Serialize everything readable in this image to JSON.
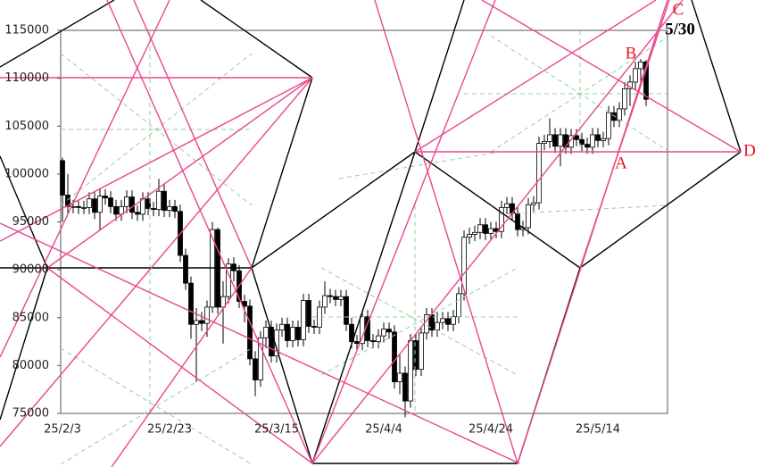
{
  "chart_data": {
    "type": "candlestick",
    "categories": [
      "25/2/3",
      null,
      null,
      null,
      null,
      null,
      null,
      null,
      null,
      null,
      null,
      null,
      null,
      null,
      null,
      null,
      null,
      null,
      null,
      null,
      "25/2/23",
      null,
      null,
      null,
      null,
      null,
      null,
      null,
      null,
      null,
      null,
      null,
      null,
      null,
      null,
      null,
      null,
      null,
      null,
      null,
      "25/3/15",
      null,
      null,
      null,
      null,
      null,
      null,
      null,
      null,
      null,
      null,
      null,
      null,
      null,
      null,
      null,
      null,
      null,
      null,
      null,
      "25/4/4",
      null,
      null,
      null,
      null,
      null,
      null,
      null,
      null,
      null,
      null,
      null,
      null,
      null,
      null,
      null,
      null,
      null,
      null,
      null,
      "25/4/24",
      null,
      null,
      null,
      null,
      null,
      null,
      null,
      null,
      null,
      null,
      null,
      null,
      null,
      null,
      null,
      null,
      null,
      null,
      null,
      "25/5/14",
      null,
      null,
      null,
      null,
      null,
      null,
      null,
      null,
      null
    ],
    "open": [
      101400,
      97800,
      96600,
      96600,
      96500,
      96500,
      97400,
      96000,
      97700,
      97500,
      96600,
      95800,
      96600,
      97600,
      96000,
      95800,
      97400,
      96400,
      96300,
      98200,
      96200,
      96600,
      96100,
      91500,
      88600,
      84300,
      84700,
      84400,
      86100,
      94200,
      86100,
      87200,
      90600,
      89900,
      86700,
      86200,
      80700,
      78500,
      82900,
      84000,
      81000,
      83700,
      84300,
      82600,
      84000,
      82700,
      86800,
      84100,
      84000,
      86100,
      87300,
      87200,
      86900,
      87200,
      84300,
      82500,
      82300,
      85100,
      82600,
      82500,
      83100,
      83800,
      83500,
      78300,
      79200,
      76300,
      82600,
      79600,
      83400,
      85300,
      83700,
      84500,
      84900,
      84300,
      85100,
      87500,
      93400,
      93700,
      93900,
      94700,
      93800,
      94300,
      94000,
      96500,
      96900,
      95900,
      94200,
      94400,
      96800,
      97000,
      103200,
      103400,
      104100,
      102900,
      104100,
      102800,
      104000,
      103600,
      103100,
      102800,
      104100,
      103500,
      103700,
      106400,
      105600,
      106800,
      108900,
      109600,
      111000,
      111700
    ],
    "high": [
      101700,
      100000,
      97300,
      97300,
      97200,
      98100,
      98100,
      98400,
      98400,
      98200,
      97300,
      97300,
      98300,
      98300,
      96700,
      98100,
      98100,
      97100,
      99500,
      98900,
      97300,
      97300,
      96800,
      92200,
      89300,
      86000,
      85600,
      86800,
      95000,
      94400,
      88800,
      91200,
      91300,
      90500,
      87400,
      86900,
      81500,
      83600,
      84700,
      84700,
      84400,
      85000,
      85000,
      84700,
      84700,
      87500,
      87500,
      84800,
      86800,
      88800,
      88000,
      87900,
      87900,
      87900,
      85000,
      83200,
      85800,
      85800,
      83300,
      83800,
      84500,
      84500,
      84200,
      81200,
      79900,
      83300,
      83300,
      84100,
      86000,
      86000,
      85600,
      85600,
      85600,
      85800,
      88200,
      94100,
      94400,
      94600,
      95400,
      95400,
      95000,
      95000,
      97200,
      97600,
      97600,
      96600,
      95100,
      97500,
      97700,
      103900,
      104100,
      105800,
      104800,
      104800,
      104800,
      104700,
      104700,
      104300,
      103800,
      104800,
      104800,
      104400,
      107100,
      107100,
      107500,
      109600,
      110300,
      111700,
      112000,
      111900
    ],
    "low": [
      95000,
      95900,
      95900,
      95800,
      95800,
      95800,
      95300,
      94200,
      96800,
      95900,
      95100,
      95100,
      95900,
      95300,
      95100,
      95100,
      95700,
      95600,
      95600,
      95500,
      95500,
      95400,
      90800,
      87900,
      82800,
      78300,
      83600,
      83000,
      85500,
      85400,
      82300,
      86500,
      88800,
      86000,
      84500,
      80000,
      76800,
      77800,
      81800,
      80300,
      80300,
      83000,
      81900,
      81900,
      82000,
      82000,
      83400,
      83300,
      83300,
      85400,
      86500,
      86200,
      86200,
      83600,
      81800,
      81600,
      81600,
      81900,
      81800,
      81800,
      82400,
      82800,
      77600,
      77000,
      74600,
      75600,
      78900,
      78900,
      82700,
      83000,
      83000,
      83800,
      83600,
      83600,
      84400,
      86800,
      92700,
      93000,
      93200,
      93100,
      93100,
      93300,
      93300,
      95800,
      95200,
      93500,
      93500,
      93700,
      96100,
      96300,
      102500,
      102700,
      102200,
      100800,
      102100,
      102100,
      102900,
      102400,
      102100,
      102100,
      102800,
      102800,
      103000,
      104900,
      104900,
      106100,
      107100,
      108800,
      109400,
      107100
    ],
    "close": [
      97800,
      96600,
      96600,
      96500,
      96500,
      97400,
      96000,
      97700,
      97500,
      96600,
      95800,
      96600,
      97600,
      96000,
      95800,
      97400,
      96400,
      96300,
      98200,
      96200,
      96600,
      96100,
      91500,
      88600,
      84300,
      84700,
      84400,
      86100,
      94200,
      86100,
      87200,
      90600,
      89900,
      86700,
      86200,
      80700,
      78500,
      82900,
      84000,
      81000,
      83700,
      84300,
      82600,
      84000,
      82700,
      86800,
      84100,
      84000,
      86100,
      87300,
      87200,
      86900,
      87200,
      84300,
      82500,
      82300,
      85100,
      82600,
      82500,
      83100,
      83800,
      83500,
      78300,
      79200,
      76300,
      82600,
      79600,
      83400,
      85300,
      83700,
      84500,
      84900,
      84300,
      85100,
      87500,
      93400,
      93700,
      93900,
      94700,
      93800,
      94300,
      94000,
      96500,
      96900,
      95900,
      94200,
      94400,
      96800,
      97000,
      103200,
      103400,
      104100,
      102900,
      104100,
      102800,
      104000,
      103600,
      103100,
      102800,
      104100,
      103500,
      103700,
      106400,
      105600,
      106800,
      108900,
      109600,
      111000,
      111700,
      107800
    ],
    "up_color": "#ffffff",
    "down_color": "#000000",
    "ylim": [
      75000,
      115000
    ],
    "yticks": [
      75000,
      80000,
      85000,
      90000,
      95000,
      100000,
      105000,
      110000,
      115000
    ],
    "annotations": [
      {
        "text": "A",
        "color": "#e8141c"
      },
      {
        "text": "B",
        "color": "#e8141c"
      },
      {
        "text": "C",
        "color": "#e8141c"
      },
      {
        "text": "D",
        "color": "#e8141c"
      },
      {
        "text": "5/30",
        "color": "#000000"
      }
    ]
  }
}
